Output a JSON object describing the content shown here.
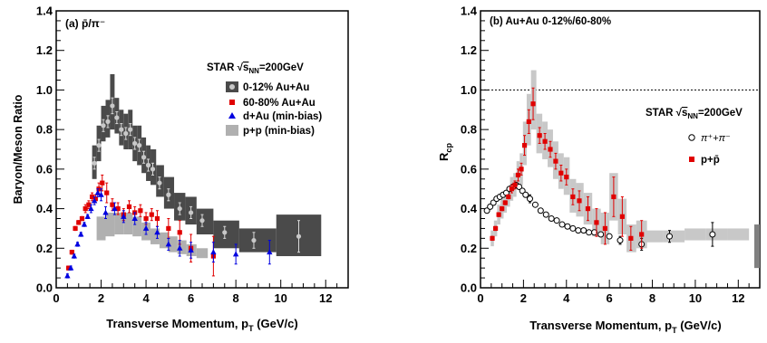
{
  "chart_data": [
    {
      "type": "scatter",
      "panel_label": "(a) p̄/π⁻",
      "xlabel": "Transverse Momentum, p",
      "xlabel_sub": "T",
      "xlabel_unit": " (GeV/c)",
      "ylabel": "Baryon/Meson Ratio",
      "xlim": [
        0,
        13
      ],
      "ylim": [
        0,
        1.4
      ],
      "xticks": [
        0,
        2,
        4,
        6,
        8,
        10,
        12
      ],
      "yticks": [
        0,
        0.2,
        0.4,
        0.6,
        0.8,
        1.0,
        1.2,
        1.4
      ],
      "ytick_labels": [
        "0.0",
        "0.2",
        "0.4",
        "0.6",
        "0.8",
        "1.0",
        "1.2",
        "1.4"
      ],
      "legend_title": "STAR √s_NN=200GeV",
      "legend_title_main": "STAR ",
      "legend_title_s": "s",
      "legend_title_sub": "NN",
      "legend_title_tail": "=200GeV",
      "legend_position": "top-right",
      "series": [
        {
          "name": "0-12% Au+Au",
          "marker": "circle-gray",
          "band_color": "#4a4a4a",
          "x": [
            1.7,
            1.9,
            2.1,
            2.3,
            2.5,
            2.7,
            2.9,
            3.1,
            3.3,
            3.5,
            3.7,
            3.9,
            4.1,
            4.3,
            4.6,
            5.0,
            5.5,
            6.0,
            6.5,
            7.5,
            8.8,
            10.8
          ],
          "y": [
            0.63,
            0.72,
            0.82,
            0.84,
            0.92,
            0.86,
            0.8,
            0.78,
            0.8,
            0.73,
            0.72,
            0.66,
            0.62,
            0.6,
            0.53,
            0.47,
            0.4,
            0.38,
            0.34,
            0.28,
            0.24,
            0.26
          ],
          "yerr": [
            0.03,
            0.03,
            0.03,
            0.03,
            0.04,
            0.03,
            0.03,
            0.03,
            0.03,
            0.03,
            0.03,
            0.03,
            0.03,
            0.03,
            0.03,
            0.03,
            0.03,
            0.03,
            0.03,
            0.03,
            0.04,
            0.08
          ],
          "band_lo": [
            0.55,
            0.64,
            0.74,
            0.76,
            0.8,
            0.78,
            0.72,
            0.7,
            0.7,
            0.64,
            0.62,
            0.58,
            0.54,
            0.52,
            0.46,
            0.4,
            0.34,
            0.32,
            0.27,
            0.2,
            0.18,
            0.16
          ],
          "band_hi": [
            0.72,
            0.82,
            0.92,
            0.95,
            1.08,
            0.96,
            0.9,
            0.88,
            0.9,
            0.82,
            0.82,
            0.76,
            0.72,
            0.7,
            0.62,
            0.56,
            0.48,
            0.46,
            0.4,
            0.34,
            0.3,
            0.37
          ]
        },
        {
          "name": "60-80% Au+Au",
          "marker": "square-red",
          "x": [
            0.55,
            0.7,
            0.85,
            1.0,
            1.15,
            1.3,
            1.45,
            1.6,
            1.75,
            1.9,
            2.05,
            2.25,
            2.5,
            2.75,
            3.0,
            3.25,
            3.5,
            3.75,
            4.0,
            4.25,
            4.5,
            5.0,
            5.5,
            6.0,
            7.0
          ],
          "y": [
            0.1,
            0.18,
            0.3,
            0.33,
            0.35,
            0.4,
            0.42,
            0.46,
            0.45,
            0.5,
            0.53,
            0.48,
            0.42,
            0.4,
            0.37,
            0.41,
            0.38,
            0.39,
            0.35,
            0.37,
            0.35,
            0.3,
            0.28,
            0.2,
            0.16
          ],
          "yerr": [
            0.01,
            0.01,
            0.01,
            0.01,
            0.01,
            0.02,
            0.02,
            0.02,
            0.02,
            0.03,
            0.04,
            0.05,
            0.03,
            0.03,
            0.03,
            0.03,
            0.03,
            0.03,
            0.03,
            0.03,
            0.04,
            0.05,
            0.06,
            0.07,
            0.1
          ]
        },
        {
          "name": "d+Au (min-bias)",
          "marker": "triangle-blue",
          "x": [
            0.5,
            0.65,
            0.8,
            0.95,
            1.1,
            1.25,
            1.4,
            1.55,
            1.7,
            1.85,
            2.0,
            2.2,
            2.6,
            3.0,
            3.5,
            4.0,
            4.5,
            5.0,
            5.5,
            6.0,
            7.0,
            8.0,
            9.5
          ],
          "y": [
            0.06,
            0.1,
            0.16,
            0.22,
            0.27,
            0.32,
            0.36,
            0.4,
            0.44,
            0.48,
            0.47,
            0.38,
            0.4,
            0.36,
            0.35,
            0.3,
            0.28,
            0.22,
            0.2,
            0.19,
            0.18,
            0.17,
            0.18
          ],
          "yerr": [
            0.01,
            0.01,
            0.01,
            0.01,
            0.01,
            0.01,
            0.01,
            0.02,
            0.02,
            0.02,
            0.03,
            0.03,
            0.03,
            0.03,
            0.03,
            0.03,
            0.03,
            0.03,
            0.04,
            0.04,
            0.05,
            0.05,
            0.06
          ]
        },
        {
          "name": "p+p (min-bias)",
          "marker": "band-gray",
          "band_color": "#b0b0b0",
          "x": [
            2.0,
            2.4,
            2.8,
            3.2,
            3.6,
            4.0,
            4.4,
            4.8,
            5.2,
            5.6,
            6.0,
            6.5
          ],
          "band_lo": [
            0.24,
            0.26,
            0.27,
            0.27,
            0.26,
            0.24,
            0.22,
            0.2,
            0.18,
            0.17,
            0.16,
            0.15
          ],
          "band_hi": [
            0.36,
            0.38,
            0.38,
            0.38,
            0.36,
            0.33,
            0.3,
            0.28,
            0.26,
            0.24,
            0.22,
            0.2
          ]
        }
      ]
    },
    {
      "type": "scatter",
      "panel_label": "(b) Au+Au 0-12%/60-80%",
      "xlabel": "Transverse Momentum, p",
      "xlabel_sub": "T",
      "xlabel_unit": " (GeV/c)",
      "ylabel": "R",
      "ylabel_sub": "cp",
      "xlim": [
        0,
        13
      ],
      "ylim": [
        0,
        1.4
      ],
      "xticks": [
        0,
        2,
        4,
        6,
        8,
        10,
        12
      ],
      "yticks": [
        0,
        0.2,
        0.4,
        0.6,
        0.8,
        1.0,
        1.2,
        1.4
      ],
      "ytick_labels": [
        "0.0",
        "0.2",
        "0.4",
        "0.6",
        "0.8",
        "1.0",
        "1.2",
        "1.4"
      ],
      "reference_line": 1.0,
      "legend_title": "STAR √s_NN=200GeV",
      "legend_title_main": "STAR ",
      "legend_title_s": "s",
      "legend_title_sub": "NN",
      "legend_title_tail": "=200GeV",
      "legend_position": "right",
      "series": [
        {
          "name": "π⁺+π⁻",
          "marker": "circle-open",
          "x": [
            0.3,
            0.45,
            0.6,
            0.75,
            0.9,
            1.05,
            1.2,
            1.35,
            1.5,
            1.65,
            1.8,
            1.95,
            2.1,
            2.3,
            2.55,
            2.8,
            3.05,
            3.3,
            3.55,
            3.8,
            4.05,
            4.3,
            4.55,
            4.8,
            5.05,
            5.3,
            5.6,
            6.0,
            6.5,
            7.5,
            8.8,
            10.8
          ],
          "y": [
            0.39,
            0.41,
            0.43,
            0.45,
            0.46,
            0.47,
            0.48,
            0.5,
            0.51,
            0.52,
            0.51,
            0.49,
            0.47,
            0.45,
            0.42,
            0.39,
            0.37,
            0.35,
            0.34,
            0.32,
            0.31,
            0.3,
            0.29,
            0.29,
            0.28,
            0.28,
            0.27,
            0.26,
            0.24,
            0.22,
            0.26,
            0.27
          ],
          "yerr": [
            0.005,
            0.005,
            0.005,
            0.005,
            0.005,
            0.005,
            0.005,
            0.005,
            0.005,
            0.005,
            0.01,
            0.01,
            0.01,
            0.02,
            0.01,
            0.01,
            0.01,
            0.01,
            0.01,
            0.01,
            0.01,
            0.01,
            0.01,
            0.01,
            0.01,
            0.01,
            0.01,
            0.01,
            0.02,
            0.03,
            0.03,
            0.06
          ]
        },
        {
          "name": "p+p̄",
          "marker": "square-red",
          "x": [
            0.55,
            0.7,
            0.85,
            1.0,
            1.15,
            1.3,
            1.45,
            1.6,
            1.75,
            1.9,
            2.05,
            2.25,
            2.45,
            2.75,
            3.0,
            3.25,
            3.5,
            3.75,
            4.0,
            4.3,
            4.6,
            5.0,
            5.4,
            5.8,
            6.2,
            6.6,
            7.0,
            7.5
          ],
          "y": [
            0.25,
            0.3,
            0.37,
            0.4,
            0.43,
            0.46,
            0.5,
            0.52,
            0.57,
            0.6,
            0.72,
            0.84,
            0.93,
            0.77,
            0.74,
            0.7,
            0.64,
            0.58,
            0.56,
            0.46,
            0.44,
            0.4,
            0.33,
            0.3,
            0.46,
            0.36,
            0.25,
            0.27
          ],
          "yerr": [
            0.01,
            0.01,
            0.01,
            0.01,
            0.01,
            0.01,
            0.02,
            0.02,
            0.03,
            0.03,
            0.05,
            0.06,
            0.08,
            0.04,
            0.04,
            0.04,
            0.04,
            0.04,
            0.04,
            0.04,
            0.05,
            0.06,
            0.07,
            0.08,
            0.1,
            0.1,
            0.06,
            0.07
          ],
          "band_lo": [
            0.21,
            0.26,
            0.32,
            0.35,
            0.38,
            0.41,
            0.44,
            0.46,
            0.5,
            0.52,
            0.62,
            0.72,
            0.8,
            0.68,
            0.65,
            0.61,
            0.55,
            0.5,
            0.47,
            0.38,
            0.36,
            0.32,
            0.26,
            0.22,
            0.34,
            0.27,
            0.18,
            0.2
          ],
          "band_hi": [
            0.29,
            0.34,
            0.42,
            0.45,
            0.48,
            0.51,
            0.56,
            0.58,
            0.64,
            0.68,
            0.84,
            0.98,
            1.1,
            0.88,
            0.84,
            0.8,
            0.74,
            0.68,
            0.66,
            0.55,
            0.53,
            0.48,
            0.4,
            0.38,
            0.58,
            0.45,
            0.32,
            0.34
          ]
        }
      ],
      "pion_band": {
        "x": [
          8.0,
          9.0,
          10.0,
          11.0,
          12.0
        ],
        "band_lo": [
          0.23,
          0.23,
          0.24,
          0.24,
          0.24
        ],
        "band_hi": [
          0.29,
          0.29,
          0.3,
          0.3,
          0.3
        ]
      },
      "edge_box": {
        "x": 13.0,
        "band_lo": 0.1,
        "band_hi": 0.32
      }
    }
  ]
}
